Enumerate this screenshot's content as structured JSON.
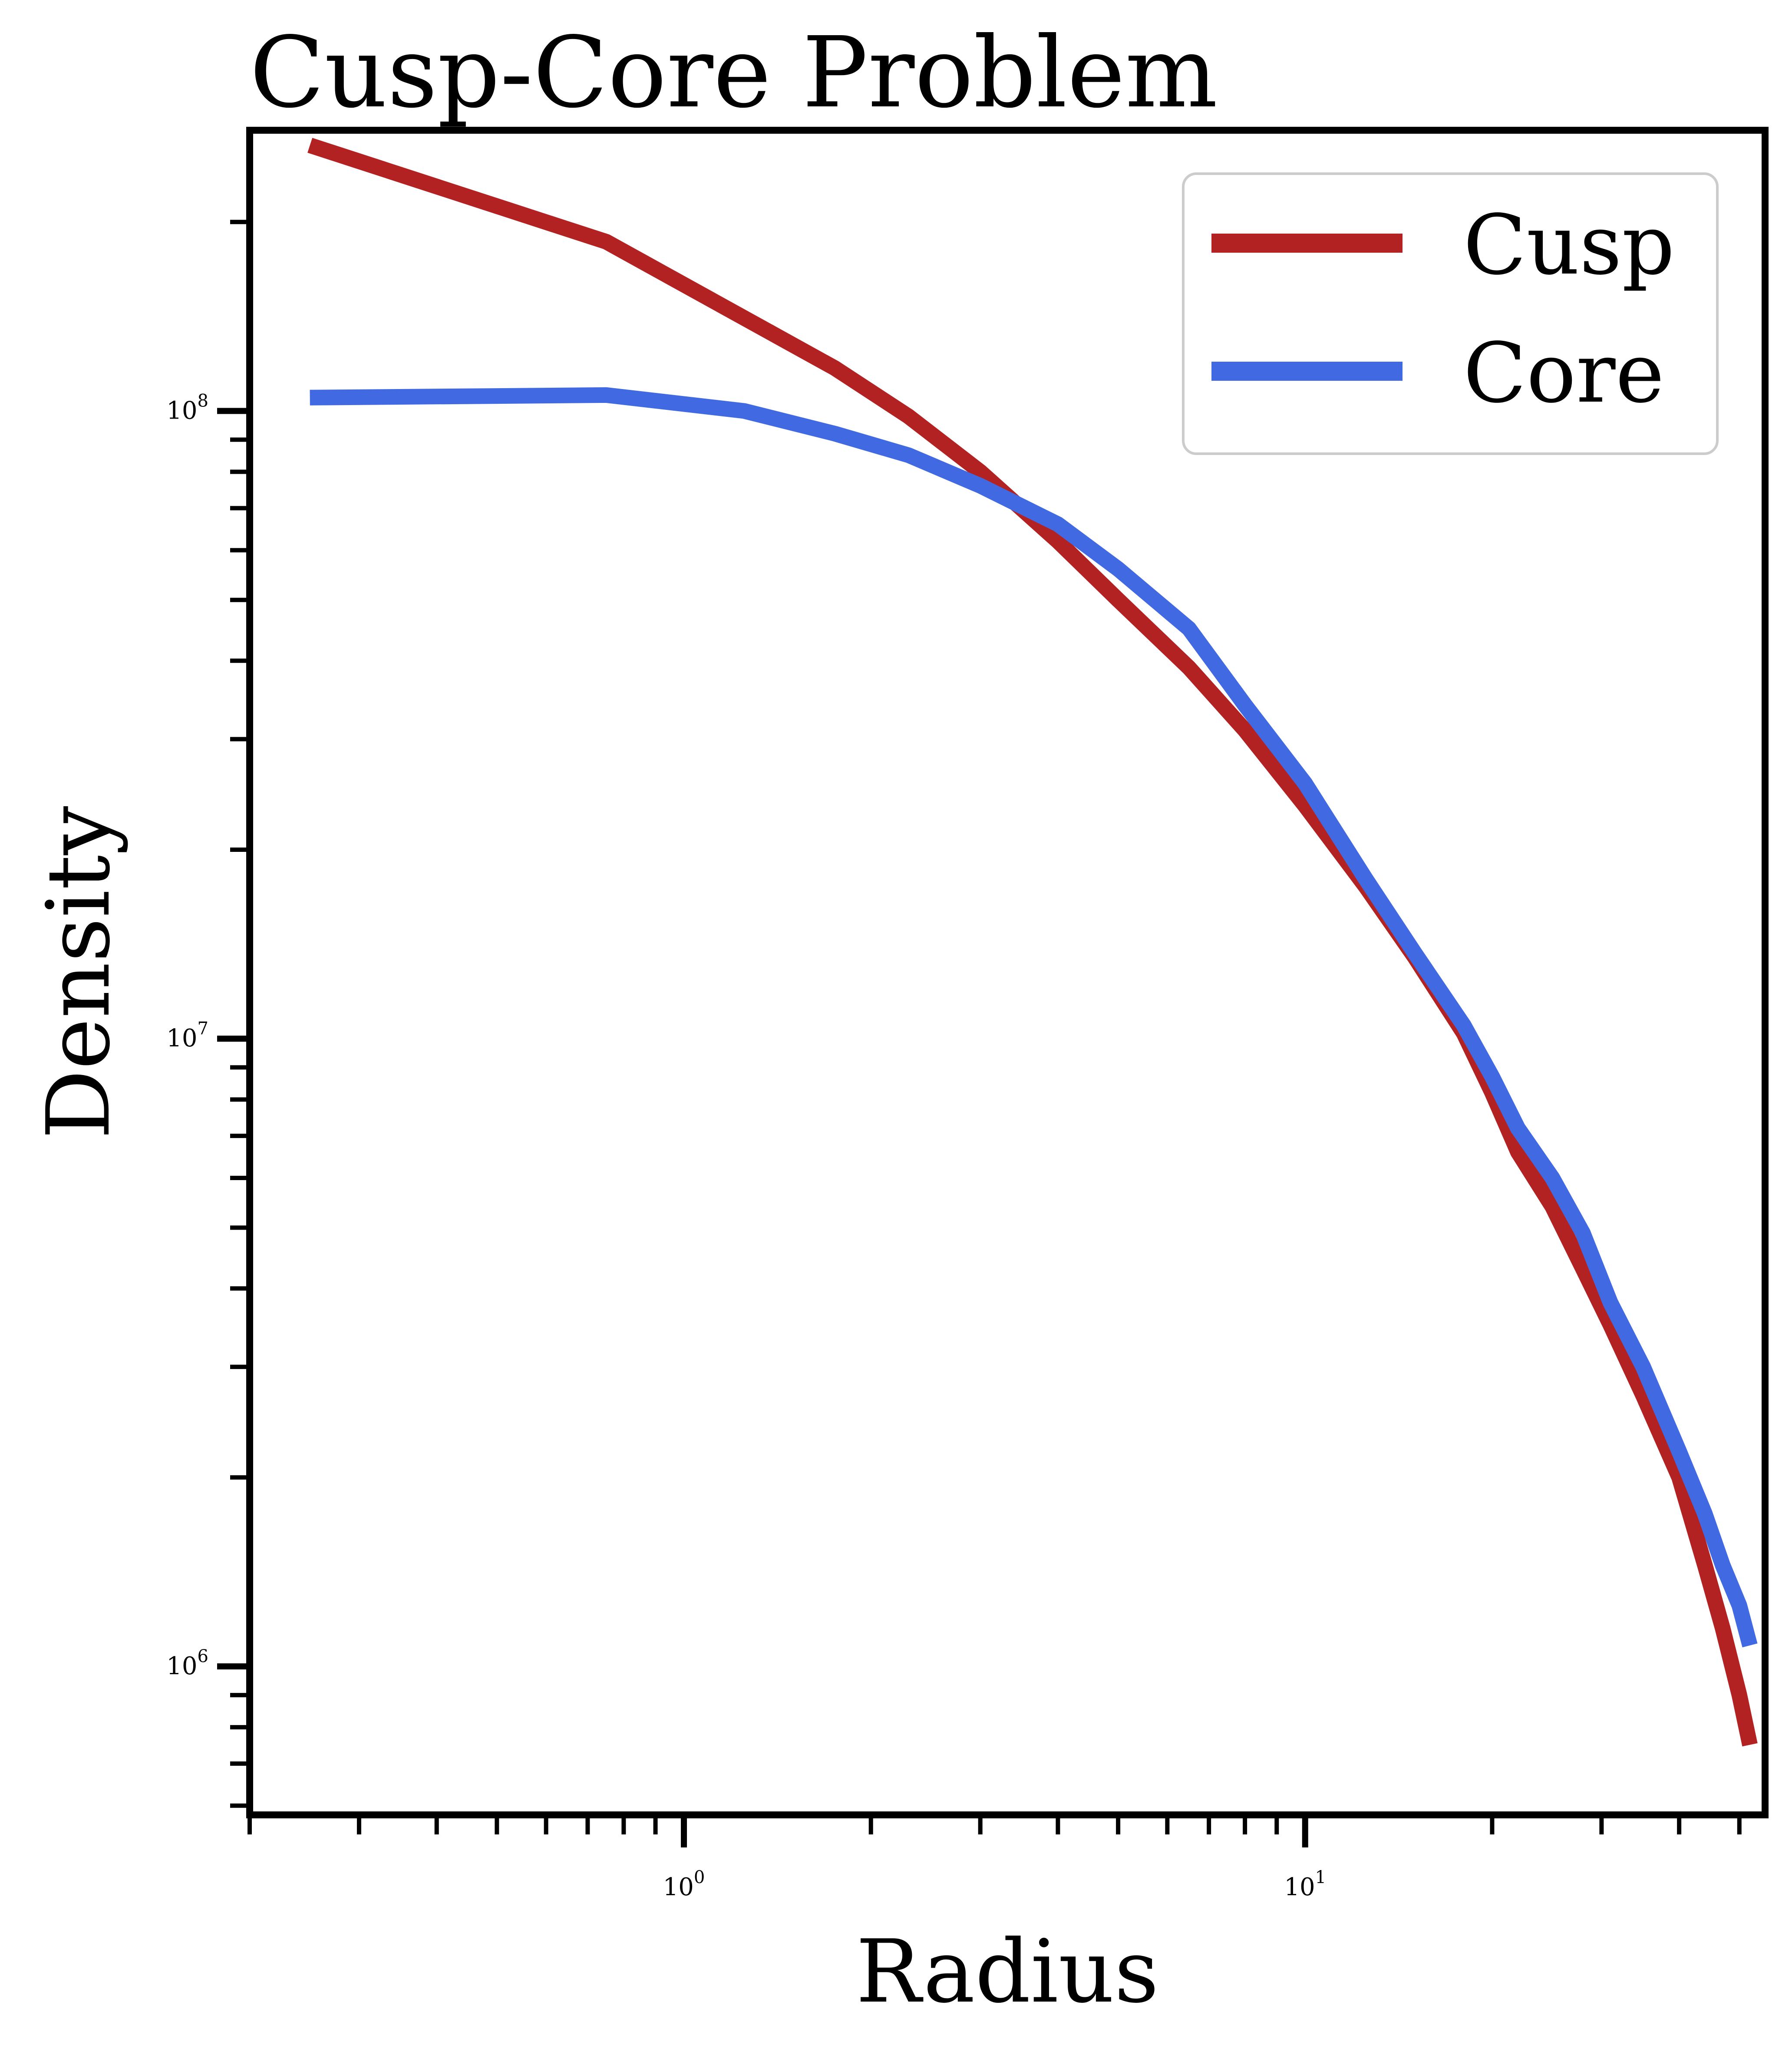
{
  "chart_data": {
    "type": "line",
    "title": "Cusp-Core Problem",
    "xlabel": "Radius",
    "ylabel": "Density",
    "xscale": "log",
    "yscale": "log",
    "xlim": [
      0.2,
      55
    ],
    "ylim": [
      580000,
      280000000
    ],
    "x_ticks": [
      {
        "base": "10",
        "exp": "0",
        "value": 1
      },
      {
        "base": "10",
        "exp": "1",
        "value": 10
      }
    ],
    "y_ticks": [
      {
        "base": "10",
        "exp": "6",
        "value": 1000000
      },
      {
        "base": "10",
        "exp": "7",
        "value": 10000000
      },
      {
        "base": "10",
        "exp": "8",
        "value": 100000000
      }
    ],
    "grid": false,
    "legend_position": "top-right",
    "series": [
      {
        "name": "Cusp",
        "color": "#b22222",
        "points": [
          [
            0.25,
            265000000
          ],
          [
            0.75,
            186000000
          ],
          [
            1.75,
            117000000
          ],
          [
            2.3,
            98000000
          ],
          [
            3.0,
            80000000
          ],
          [
            4.0,
            62000000
          ],
          [
            5.0,
            50000000
          ],
          [
            6.5,
            39000000
          ],
          [
            8.0,
            31000000
          ],
          [
            10.0,
            23500000
          ],
          [
            12.5,
            17500000
          ],
          [
            15.0,
            13500000
          ],
          [
            18.0,
            10200000
          ],
          [
            20.0,
            8200000
          ],
          [
            22.0,
            6600000
          ],
          [
            25.0,
            5400000
          ],
          [
            28.0,
            4300000
          ],
          [
            31.0,
            3500000
          ],
          [
            35.0,
            2700000
          ],
          [
            40.0,
            2000000
          ],
          [
            44.0,
            1450000
          ],
          [
            47.0,
            1150000
          ],
          [
            50.0,
            900000
          ],
          [
            52.0,
            750000
          ]
        ]
      },
      {
        "name": "Core",
        "color": "#4169e1",
        "points": [
          [
            0.25,
            105000000
          ],
          [
            0.75,
            106000000
          ],
          [
            1.25,
            100000000
          ],
          [
            1.75,
            92000000
          ],
          [
            2.3,
            85000000
          ],
          [
            3.0,
            76000000
          ],
          [
            4.0,
            66000000
          ],
          [
            5.0,
            56000000
          ],
          [
            6.5,
            45000000
          ],
          [
            8.0,
            34000000
          ],
          [
            10.0,
            25500000
          ],
          [
            12.5,
            18000000
          ],
          [
            15.0,
            13700000
          ],
          [
            18.0,
            10500000
          ],
          [
            20.0,
            8700000
          ],
          [
            22.0,
            7200000
          ],
          [
            25.0,
            6000000
          ],
          [
            28.0,
            4900000
          ],
          [
            31.0,
            3800000
          ],
          [
            35.0,
            3000000
          ],
          [
            40.0,
            2200000
          ],
          [
            44.0,
            1750000
          ],
          [
            47.0,
            1450000
          ],
          [
            50.0,
            1250000
          ],
          [
            52.0,
            1080000
          ]
        ]
      }
    ]
  }
}
